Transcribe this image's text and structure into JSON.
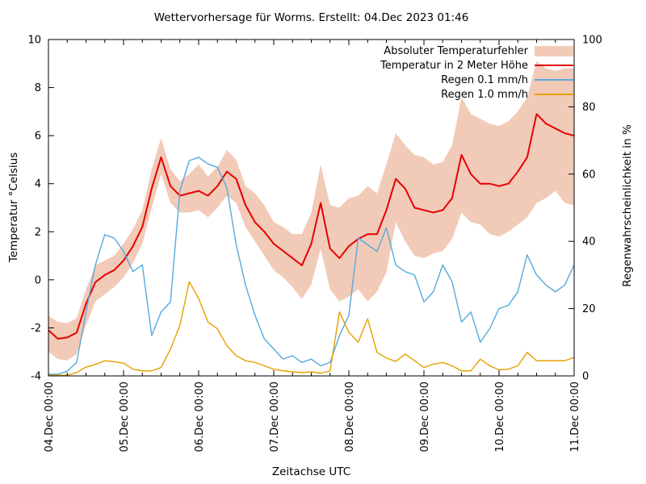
{
  "chart_title": "Wettervorhersage für Worms. Erstellt: 04.Dec 2023 01:46",
  "axes": {
    "left": {
      "label": "Temperatur °Celsius",
      "ticks": [
        10,
        8,
        6,
        4,
        2,
        0,
        -2,
        -4
      ],
      "range": [
        -4,
        10
      ]
    },
    "right": {
      "label": "Regenwahrscheinlichkeit in %",
      "ticks": [
        100,
        80,
        60,
        40,
        20,
        0
      ],
      "range": [
        0,
        100
      ]
    },
    "bottom": {
      "label": "Zeitachse UTC",
      "tick_labels": [
        "04.Dec 00:00",
        "05.Dec 00:00",
        "06.Dec 00:00",
        "07.Dec 00:00",
        "08.Dec 00:00",
        "09.Dec 00:00",
        "10.Dec 00:00",
        "11.Dec 00:00"
      ],
      "major_tick_hours": [
        0,
        24,
        48,
        72,
        96,
        120,
        144,
        168
      ],
      "minor_step_hours": 6
    }
  },
  "legend": [
    {
      "label": "Absoluter Temperaturfehler",
      "swatch": "band",
      "color": "#f2cab8"
    },
    {
      "label": "Temperatur in 2 Meter Höhe",
      "swatch": "line",
      "color": "#e60000"
    },
    {
      "label": "Regen 0.1 mm/h",
      "swatch": "line",
      "color": "#56aade"
    },
    {
      "label": "Regen 1.0 mm/h",
      "swatch": "line",
      "color": "#e69f00"
    }
  ],
  "colors": {
    "background": "#ffffff",
    "axis": "#000000",
    "error_band": "#f2cab8",
    "temperature": "#e60000",
    "rain01": "#56aade",
    "rain10": "#e69f00"
  },
  "chart_data": {
    "type": "line",
    "title": "Wettervorhersage für Worms. Erstellt: 04.Dec 2023 01:46",
    "xlabel": "Zeitachse UTC",
    "ylabel_left": "Temperatur °Celsius",
    "ylabel_right": "Regenwahrscheinlichkeit in %",
    "xlim_hours": [
      0,
      168
    ],
    "ylim_left": [
      -4,
      10
    ],
    "ylim_right": [
      0,
      100
    ],
    "grid": false,
    "legend_position": "top-right-inside",
    "x_start_label": "04.Dec 00:00",
    "x_step_hours": 3,
    "x_hours": [
      0,
      3,
      6,
      9,
      12,
      15,
      18,
      21,
      24,
      27,
      30,
      33,
      36,
      39,
      42,
      45,
      48,
      51,
      54,
      57,
      60,
      63,
      66,
      69,
      72,
      75,
      78,
      81,
      84,
      87,
      90,
      93,
      96,
      99,
      102,
      105,
      108,
      111,
      114,
      117,
      120,
      123,
      126,
      129,
      132,
      135,
      138,
      141,
      144,
      147,
      150,
      153,
      156,
      159,
      162,
      165,
      168
    ],
    "series": [
      {
        "name": "Absoluter Temperaturfehler",
        "type": "band",
        "axis": "left",
        "color": "#f2cab8",
        "upper": [
          -1.5,
          -1.75,
          -1.8,
          -1.6,
          -0.4,
          0.6,
          0.8,
          1.0,
          1.5,
          2.1,
          2.9,
          4.6,
          5.9,
          4.6,
          4.1,
          4.4,
          4.8,
          4.3,
          4.7,
          5.4,
          5.0,
          3.9,
          3.6,
          3.1,
          2.4,
          2.2,
          1.9,
          1.9,
          2.8,
          4.8,
          3.1,
          3.0,
          3.4,
          3.5,
          3.9,
          3.6,
          4.8,
          6.1,
          5.6,
          5.2,
          5.1,
          4.8,
          4.9,
          5.6,
          7.6,
          6.9,
          6.7,
          6.5,
          6.4,
          6.6,
          7.0,
          7.6,
          9.1,
          8.8,
          8.7,
          8.8,
          8.8
        ],
        "lower": [
          -3.0,
          -3.3,
          -3.35,
          -3.1,
          -1.9,
          -0.9,
          -0.6,
          -0.3,
          0.1,
          0.7,
          1.5,
          3.0,
          4.4,
          3.2,
          2.8,
          2.8,
          2.9,
          2.6,
          3.0,
          3.5,
          3.2,
          2.2,
          1.6,
          1.0,
          0.4,
          0.1,
          -0.3,
          -0.8,
          -0.2,
          1.3,
          -0.4,
          -0.9,
          -0.7,
          -0.4,
          -0.9,
          -0.5,
          0.3,
          2.4,
          1.6,
          1.0,
          0.9,
          1.1,
          1.2,
          1.7,
          2.8,
          2.4,
          2.3,
          1.9,
          1.8,
          2.0,
          2.3,
          2.6,
          3.2,
          3.4,
          3.7,
          3.2,
          3.1
        ]
      },
      {
        "name": "Temperatur in 2 Meter Höhe",
        "type": "line",
        "axis": "left",
        "color": "#e60000",
        "width": 2,
        "values": [
          -2.1,
          -2.45,
          -2.4,
          -2.2,
          -1.0,
          -0.1,
          0.2,
          0.4,
          0.8,
          1.4,
          2.2,
          3.8,
          5.1,
          3.9,
          3.5,
          3.6,
          3.7,
          3.5,
          3.9,
          4.5,
          4.2,
          3.1,
          2.4,
          2.0,
          1.5,
          1.2,
          0.9,
          0.6,
          1.5,
          3.2,
          1.3,
          0.9,
          1.4,
          1.7,
          1.9,
          1.9,
          2.9,
          4.2,
          3.8,
          3.0,
          2.9,
          2.8,
          2.9,
          3.4,
          5.2,
          4.4,
          4.0,
          4.0,
          3.9,
          4.0,
          4.5,
          5.1,
          6.9,
          6.5,
          6.3,
          6.1,
          6.0
        ]
      },
      {
        "name": "Regen 0.1 mm/h",
        "type": "line",
        "axis": "right",
        "color": "#56aade",
        "width": 1.4,
        "values": [
          0.5,
          0.5,
          1.4,
          4,
          19,
          33,
          42,
          41,
          37,
          31,
          33,
          12,
          19,
          22,
          55,
          64,
          65,
          63,
          62,
          56,
          39,
          27,
          18,
          11,
          8,
          5,
          6,
          4,
          5,
          3,
          4,
          12,
          18,
          41,
          39,
          37,
          44,
          33,
          31,
          30,
          22,
          25,
          33,
          28,
          16,
          19,
          10,
          14,
          20,
          21,
          25,
          36,
          30,
          27,
          25,
          27,
          33
        ]
      },
      {
        "name": "Regen 1.0 mm/h",
        "type": "line",
        "axis": "right",
        "color": "#e69f00",
        "width": 1.4,
        "values": [
          0.2,
          0.2,
          0.2,
          1,
          2.6,
          3.4,
          4.5,
          4.2,
          3.8,
          2,
          1.5,
          1.5,
          2.5,
          8,
          15,
          28,
          23,
          16,
          14,
          9,
          6,
          4.5,
          4,
          3,
          2,
          1.5,
          1.2,
          1,
          1.2,
          0.8,
          1.5,
          19,
          13,
          10,
          17,
          7,
          5.3,
          4.3,
          6.5,
          4.5,
          2.5,
          3.5,
          4,
          3,
          1.5,
          1.5,
          5,
          3,
          1.8,
          2,
          3,
          7,
          4.5,
          4.5,
          4.5,
          4.5,
          5.5
        ]
      }
    ]
  }
}
